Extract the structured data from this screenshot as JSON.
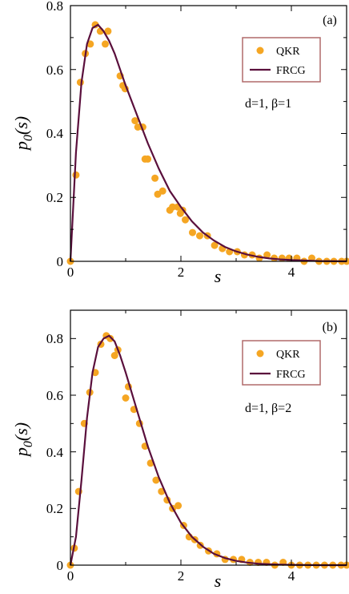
{
  "chart_data": [
    {
      "type": "scatter",
      "panel_label": "(a)",
      "annotation": "d=1, β=1",
      "xlabel": "s",
      "ylabel_main": "p",
      "ylabel_sub": "0",
      "ylabel_tail": "(s)",
      "xlim": [
        0,
        5
      ],
      "ylim": [
        0,
        0.8
      ],
      "xticks": [
        0,
        2,
        4
      ],
      "xtick_labels": [
        "0",
        "2",
        "4"
      ],
      "yticks": [
        0,
        0.2,
        0.4,
        0.6,
        0.8
      ],
      "ytick_labels": [
        "0",
        "0.2",
        "0.4",
        "0.6",
        "0.8"
      ],
      "legend_position": "top-right",
      "colors": {
        "points": "#f5a623",
        "curve": "#5a0f3c",
        "legend_border": "#b06a6a"
      },
      "series": [
        {
          "name": "QKR",
          "kind": "points",
          "x": [
            0.0,
            0.1,
            0.18,
            0.27,
            0.36,
            0.45,
            0.54,
            0.63,
            0.68,
            0.9,
            0.95,
            0.99,
            1.17,
            1.22,
            1.31,
            1.35,
            1.4,
            1.53,
            1.58,
            1.67,
            1.8,
            1.85,
            1.94,
            1.99,
            2.03,
            2.08,
            2.21,
            2.34,
            2.48,
            2.61,
            2.75,
            2.88,
            3.02,
            3.15,
            3.29,
            3.42,
            3.56,
            3.69,
            3.83,
            3.96,
            4.1,
            4.23,
            4.37,
            4.5,
            4.64,
            4.77,
            4.91,
            5.0
          ],
          "y": [
            0.0,
            0.27,
            0.56,
            0.65,
            0.68,
            0.74,
            0.72,
            0.68,
            0.72,
            0.58,
            0.55,
            0.54,
            0.44,
            0.42,
            0.42,
            0.32,
            0.32,
            0.26,
            0.21,
            0.22,
            0.16,
            0.17,
            0.17,
            0.15,
            0.16,
            0.13,
            0.09,
            0.08,
            0.08,
            0.05,
            0.04,
            0.03,
            0.03,
            0.02,
            0.02,
            0.01,
            0.02,
            0.01,
            0.01,
            0.01,
            0.01,
            0.0,
            0.01,
            0.0,
            0.0,
            0.0,
            0.0,
            0.0
          ]
        },
        {
          "name": "FRCG",
          "kind": "curve",
          "x": [
            0.0,
            0.1,
            0.2,
            0.3,
            0.4,
            0.5,
            0.6,
            0.7,
            0.8,
            0.9,
            1.0,
            1.2,
            1.4,
            1.6,
            1.8,
            2.0,
            2.2,
            2.4,
            2.6,
            2.8,
            3.0,
            3.2,
            3.4,
            3.6,
            3.8,
            4.0,
            4.5,
            5.0
          ],
          "y": [
            0.0,
            0.34,
            0.56,
            0.68,
            0.73,
            0.74,
            0.72,
            0.69,
            0.65,
            0.6,
            0.55,
            0.46,
            0.37,
            0.29,
            0.22,
            0.17,
            0.125,
            0.09,
            0.065,
            0.045,
            0.031,
            0.021,
            0.014,
            0.009,
            0.006,
            0.004,
            0.001,
            0.0
          ]
        }
      ]
    },
    {
      "type": "scatter",
      "panel_label": "(b)",
      "annotation": "d=1, β=2",
      "xlabel": "s",
      "ylabel_main": "p",
      "ylabel_sub": "0",
      "ylabel_tail": "(s)",
      "xlim": [
        0,
        5
      ],
      "ylim": [
        0,
        0.9
      ],
      "xticks": [
        0,
        2,
        4
      ],
      "xtick_labels": [
        "0",
        "2",
        "4"
      ],
      "yticks": [
        0,
        0.2,
        0.4,
        0.6,
        0.8
      ],
      "ytick_labels": [
        "0",
        "0.2",
        "0.4",
        "0.6",
        "0.8"
      ],
      "legend_position": "top-right",
      "colors": {
        "points": "#f5a623",
        "curve": "#5a0f3c",
        "legend_border": "#b06a6a"
      },
      "series": [
        {
          "name": "QKR",
          "kind": "points",
          "x": [
            0.0,
            0.07,
            0.15,
            0.25,
            0.35,
            0.45,
            0.55,
            0.65,
            0.72,
            0.8,
            0.86,
            1.0,
            1.05,
            1.15,
            1.25,
            1.35,
            1.45,
            1.55,
            1.65,
            1.75,
            1.85,
            1.95,
            2.05,
            2.15,
            2.25,
            2.35,
            2.5,
            2.65,
            2.8,
            2.95,
            3.1,
            3.25,
            3.4,
            3.55,
            3.7,
            3.85,
            4.0,
            4.15,
            4.3,
            4.45,
            4.6,
            4.75,
            4.9,
            5.0
          ],
          "y": [
            0.0,
            0.06,
            0.26,
            0.5,
            0.61,
            0.68,
            0.78,
            0.81,
            0.8,
            0.74,
            0.76,
            0.59,
            0.63,
            0.55,
            0.5,
            0.42,
            0.36,
            0.3,
            0.26,
            0.23,
            0.2,
            0.21,
            0.14,
            0.1,
            0.09,
            0.07,
            0.05,
            0.04,
            0.02,
            0.02,
            0.02,
            0.01,
            0.01,
            0.01,
            0.0,
            0.01,
            0.0,
            0.0,
            0.0,
            0.0,
            0.0,
            0.0,
            0.0,
            0.0
          ]
        },
        {
          "name": "FRCG",
          "kind": "curve",
          "x": [
            0.0,
            0.1,
            0.2,
            0.3,
            0.4,
            0.5,
            0.6,
            0.7,
            0.8,
            0.9,
            1.0,
            1.2,
            1.4,
            1.6,
            1.8,
            2.0,
            2.2,
            2.4,
            2.6,
            2.8,
            3.0,
            3.2,
            3.4,
            3.6,
            3.8,
            4.0,
            4.5,
            5.0
          ],
          "y": [
            0.0,
            0.1,
            0.3,
            0.52,
            0.68,
            0.77,
            0.8,
            0.81,
            0.79,
            0.74,
            0.68,
            0.55,
            0.42,
            0.31,
            0.22,
            0.15,
            0.1,
            0.065,
            0.04,
            0.025,
            0.015,
            0.009,
            0.005,
            0.003,
            0.002,
            0.001,
            0.0,
            0.0
          ]
        }
      ]
    }
  ]
}
